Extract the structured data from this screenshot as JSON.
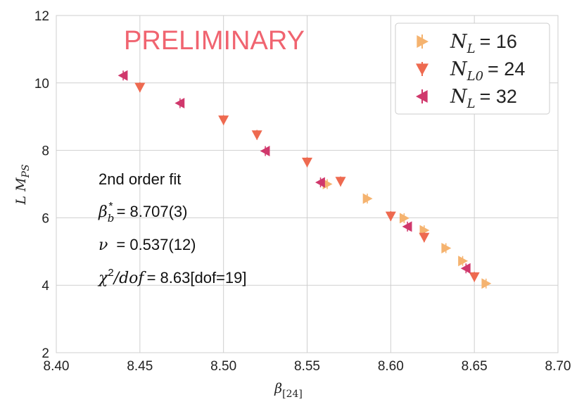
{
  "chart_data": {
    "type": "scatter",
    "title": "",
    "watermark": "PRELIMINARY",
    "xlabel": "β[24]",
    "xlabel_base": "β",
    "xlabel_sub": "[24]",
    "ylabel": "L M_PS",
    "ylabel_base": "L M",
    "ylabel_sub": "PS",
    "xlim": [
      8.4,
      8.7
    ],
    "ylim": [
      2,
      12
    ],
    "xticks": [
      "8.40",
      "8.45",
      "8.50",
      "8.55",
      "8.60",
      "8.65",
      "8.70"
    ],
    "yticks": [
      "2",
      "4",
      "6",
      "8",
      "10",
      "12"
    ],
    "grid": true,
    "legend_position": "top-right",
    "series": [
      {
        "name": "N_L = 16",
        "legend_base": "N",
        "legend_sub": "L",
        "legend_eq": "= 16",
        "marker": "triangle-right",
        "color": "#f5b36f",
        "x": [
          8.562,
          8.586,
          8.608,
          8.62,
          8.633,
          8.643,
          8.657
        ],
        "y": [
          7.0,
          6.57,
          5.99,
          5.63,
          5.1,
          4.72,
          4.05
        ]
      },
      {
        "name": "N_L0 = 24",
        "legend_base": "N",
        "legend_sub": "L0",
        "legend_eq": "= 24",
        "marker": "triangle-down",
        "color": "#ee6a50",
        "x": [
          8.45,
          8.5,
          8.52,
          8.55,
          8.57,
          8.6,
          8.62,
          8.65
        ],
        "y": [
          9.87,
          8.9,
          8.46,
          7.65,
          7.08,
          6.05,
          5.42,
          4.25
        ]
      },
      {
        "name": "N_L = 32",
        "legend_base": "N",
        "legend_sub": "L",
        "legend_eq": "= 32",
        "marker": "triangle-left",
        "color": "#d0386c",
        "x": [
          8.44,
          8.474,
          8.525,
          8.558,
          8.61,
          8.645
        ],
        "y": [
          10.22,
          9.4,
          7.98,
          7.05,
          5.74,
          4.5
        ]
      }
    ],
    "annotation": {
      "title": "2nd order fit",
      "beta_base": "β",
      "beta_sub": "b",
      "beta_sup": "*",
      "beta_value": "= 8.707(3)",
      "nu_symbol": "ν",
      "nu_value": "= 0.537(12)",
      "chi_base": "χ",
      "chi_sup": "2",
      "chi_rest": "/dof",
      "chi_value": "= 8.63[dof=19]"
    }
  }
}
